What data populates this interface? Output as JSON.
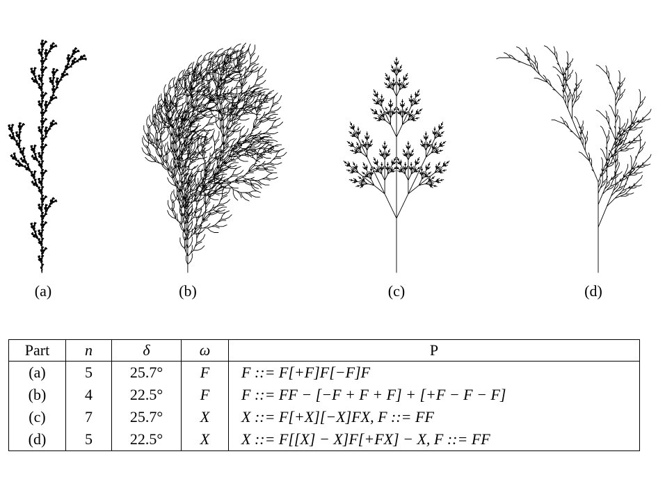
{
  "figure": {
    "plants": [
      {
        "caption": "(a)",
        "icon": "lsystem-plant-a"
      },
      {
        "caption": "(b)",
        "icon": "lsystem-plant-b"
      },
      {
        "caption": "(c)",
        "icon": "lsystem-plant-c"
      },
      {
        "caption": "(d)",
        "icon": "lsystem-plant-d"
      }
    ]
  },
  "table": {
    "headers": [
      "Part",
      "n",
      "δ",
      "ω",
      "P"
    ],
    "rows": [
      {
        "part": "(a)",
        "n": "5",
        "delta": "25.7°",
        "omega": "F",
        "rule": "F ::= F[+F]F[−F]F"
      },
      {
        "part": "(b)",
        "n": "4",
        "delta": "22.5°",
        "omega": "F",
        "rule": "F ::= FF − [−F + F + F] + [+F − F − F]"
      },
      {
        "part": "(c)",
        "n": "7",
        "delta": "25.7°",
        "omega": "X",
        "rule": "X ::= F[+X][−X]FX, F ::= FF"
      },
      {
        "part": "(d)",
        "n": "5",
        "delta": "22.5°",
        "omega": "X",
        "rule": "X ::= F[[X] − X]F[+FX] − X, F ::= FF"
      }
    ]
  }
}
